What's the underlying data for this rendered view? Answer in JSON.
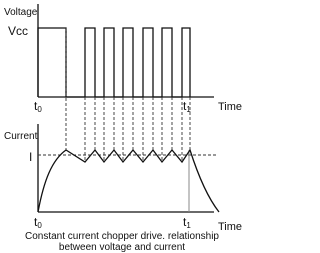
{
  "top_graph": {
    "y_label": "Voltage",
    "level_label": "Vcc",
    "t0": {
      "base": "t",
      "sub": "0"
    },
    "t1": {
      "base": "t",
      "sub": "1"
    },
    "x_label": "Time"
  },
  "bottom_graph": {
    "y_label": "Current",
    "level_label": "I",
    "t0": {
      "base": "t",
      "sub": "0"
    },
    "t1": {
      "base": "t",
      "sub": "1"
    },
    "x_label": "Time"
  },
  "caption": [
    "Constant current chopper drive. relationship",
    "between voltage and current"
  ]
}
